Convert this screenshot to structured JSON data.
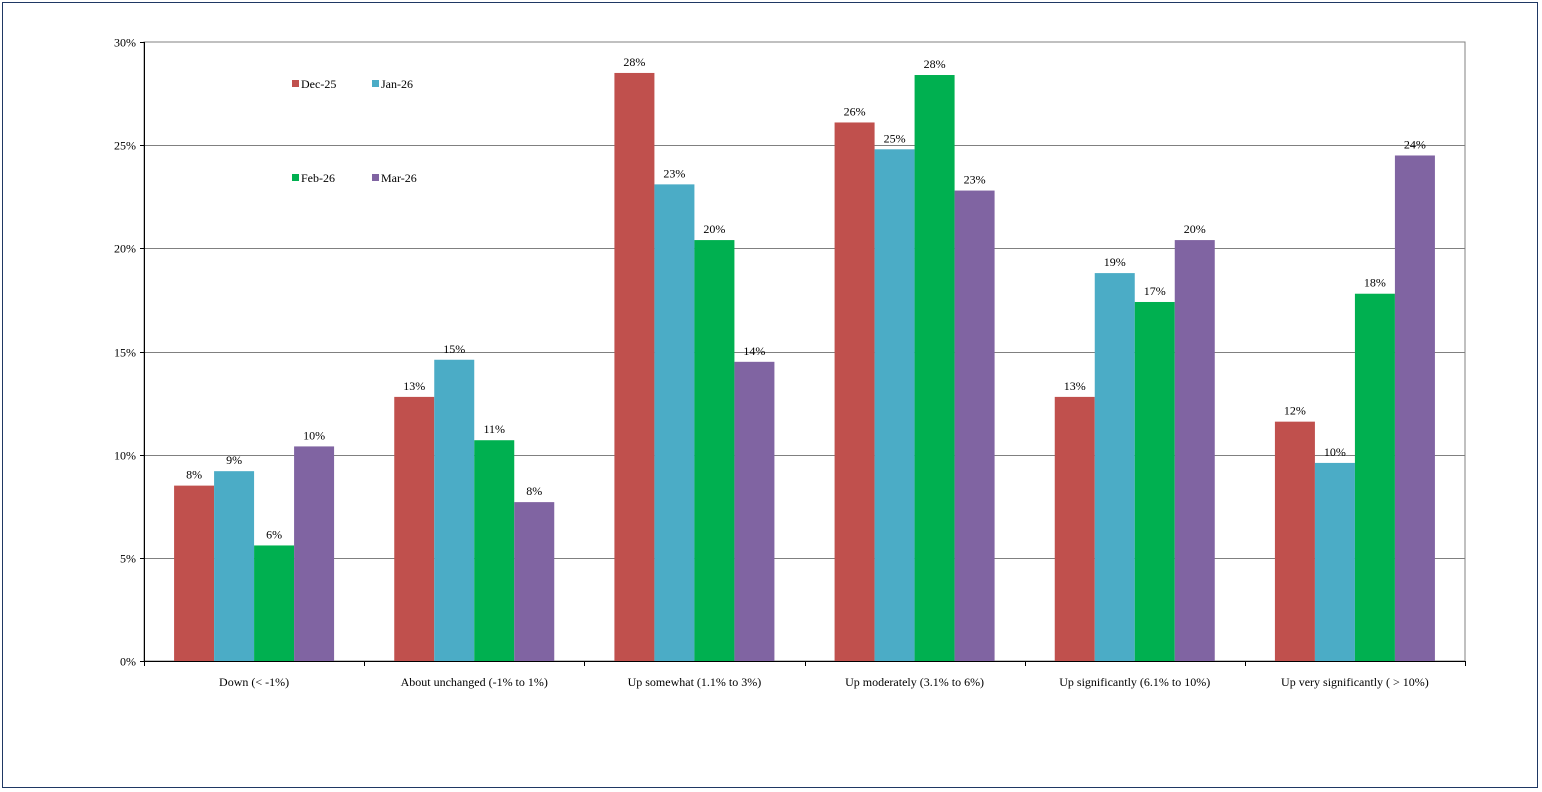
{
  "chart_data": {
    "type": "bar",
    "title": "",
    "xlabel": "",
    "ylabel": "",
    "ylim": [
      0,
      30
    ],
    "yticks": [
      "0%",
      "5%",
      "10%",
      "15%",
      "20%",
      "25%",
      "30%"
    ],
    "grid": true,
    "legend_position": "top-left",
    "categories": [
      "Down (< -1%)",
      "About unchanged (-1% to 1%)",
      "Up somewhat (1.1% to 3%)",
      "Up moderately (3.1% to 6%)",
      "Up significantly (6.1% to 10%)",
      "Up very significantly ( > 10%)"
    ],
    "series": [
      {
        "name": "Dec-25",
        "color": "#c0504d",
        "values": [
          8.5,
          12.8,
          28.5,
          26.1,
          12.8,
          11.6
        ],
        "labels": [
          "8%",
          "13%",
          "28%",
          "26%",
          "13%",
          "12%"
        ]
      },
      {
        "name": "Jan-26",
        "color": "#4bacc6",
        "values": [
          9.2,
          14.6,
          23.1,
          24.8,
          18.8,
          9.6
        ],
        "labels": [
          "9%",
          "15%",
          "23%",
          "25%",
          "19%",
          "10%"
        ]
      },
      {
        "name": "Feb-26",
        "color": "#00b050",
        "values": [
          5.6,
          10.7,
          20.4,
          28.4,
          17.4,
          17.8
        ],
        "labels": [
          "6%",
          "11%",
          "20%",
          "28%",
          "17%",
          "18%"
        ]
      },
      {
        "name": "Mar-26",
        "color": "#8064a2",
        "values": [
          10.4,
          7.7,
          14.5,
          22.8,
          20.4,
          24.5
        ],
        "labels": [
          "10%",
          "8%",
          "14%",
          "23%",
          "20%",
          "24%"
        ]
      }
    ]
  }
}
